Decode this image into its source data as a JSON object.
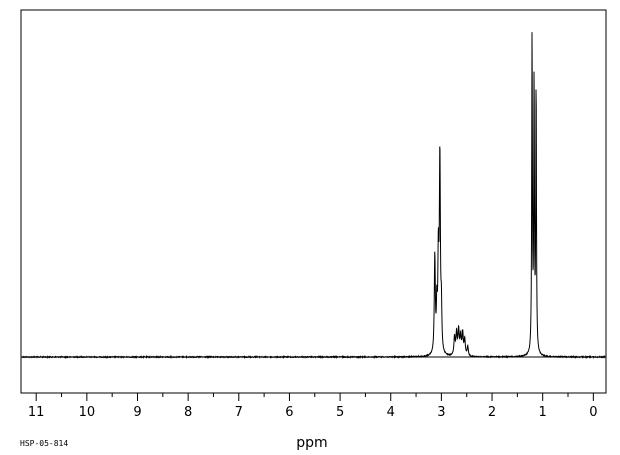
{
  "chart_data": {
    "type": "line",
    "title": "",
    "xlabel": "ppm",
    "ylabel": "",
    "code_label": "HSP-05-814",
    "x_reversed": true,
    "xlim": [
      11.3,
      -0.25
    ],
    "ylim": [
      -0.12,
      1.0
    ],
    "x_ticks": [
      11,
      10,
      9,
      8,
      7,
      6,
      5,
      4,
      3,
      2,
      1,
      0
    ],
    "grid": false,
    "legend": "none",
    "line_color": "#000000",
    "peaks": [
      {
        "ppm": 3.13,
        "height": 0.31,
        "width": 0.012
      },
      {
        "ppm": 3.09,
        "height": 0.14,
        "width": 0.01
      },
      {
        "ppm": 3.06,
        "height": 0.3,
        "width": 0.012
      },
      {
        "ppm": 3.03,
        "height": 0.62,
        "width": 0.012
      },
      {
        "ppm": 3.0,
        "height": 0.13,
        "width": 0.01
      },
      {
        "ppm": 2.74,
        "height": 0.06,
        "width": 0.014
      },
      {
        "ppm": 2.7,
        "height": 0.07,
        "width": 0.014
      },
      {
        "ppm": 2.66,
        "height": 0.08,
        "width": 0.014
      },
      {
        "ppm": 2.62,
        "height": 0.06,
        "width": 0.014
      },
      {
        "ppm": 2.58,
        "height": 0.07,
        "width": 0.014
      },
      {
        "ppm": 2.54,
        "height": 0.05,
        "width": 0.014
      },
      {
        "ppm": 2.48,
        "height": 0.03,
        "width": 0.014
      },
      {
        "ppm": 1.21,
        "height": 1.0,
        "width": 0.008
      },
      {
        "ppm": 1.17,
        "height": 0.86,
        "width": 0.008
      },
      {
        "ppm": 1.13,
        "height": 0.85,
        "width": 0.008
      }
    ]
  }
}
